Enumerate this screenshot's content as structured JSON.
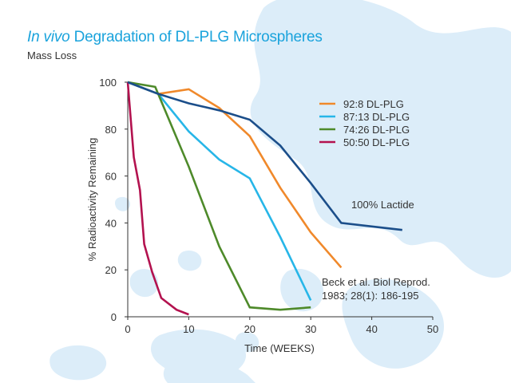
{
  "header": {
    "title_italic": "In vivo",
    "title_rest": " Degradation of  DL-PLG Microspheres",
    "subtitle": "Mass Loss"
  },
  "colors": {
    "title": "#1aa3dc",
    "background_blob": "#dcedf9",
    "axis": "#333333"
  },
  "chart_data": {
    "type": "line",
    "title": "In vivo Degradation of DL-PLG Microspheres",
    "subtitle": "Mass Loss",
    "xlabel": "Time (WEEKS)",
    "ylabel": "% Radioactivity Remaining",
    "xlim": [
      0,
      50
    ],
    "ylim": [
      0,
      100
    ],
    "xticks": [
      0,
      10,
      20,
      30,
      40,
      50
    ],
    "yticks": [
      0,
      20,
      40,
      60,
      80,
      100
    ],
    "grid": false,
    "legend_position": "top-right",
    "series": [
      {
        "name": "92:8 DL-PLG",
        "color": "#f0892b",
        "x": [
          0,
          5,
          10,
          15,
          20,
          25,
          30,
          35
        ],
        "y": [
          100,
          95,
          97,
          89,
          77,
          55,
          36,
          21
        ]
      },
      {
        "name": "87:13 DL-PLG",
        "color": "#27b6e8",
        "x": [
          0,
          5,
          10,
          15,
          20,
          25,
          30
        ],
        "y": [
          100,
          95,
          79,
          67,
          59,
          34,
          7
        ]
      },
      {
        "name": "74:26 DL-PLG",
        "color": "#4e8a2a",
        "x": [
          0,
          4.5,
          10,
          15,
          20,
          25,
          30
        ],
        "y": [
          100,
          98,
          64,
          30,
          4,
          3,
          4
        ]
      },
      {
        "name": "50:50 DL-PLG",
        "color": "#b3124f",
        "x": [
          0,
          1,
          2,
          2.7,
          4,
          5.5,
          8,
          10
        ],
        "y": [
          100,
          68,
          54,
          31,
          19,
          8,
          3,
          1
        ]
      },
      {
        "name": "100% Lactide",
        "color": "#1b4e8a",
        "x": [
          0,
          5,
          10,
          15,
          20,
          25,
          30,
          35,
          45
        ],
        "y": [
          100,
          95,
          91,
          88,
          84,
          73,
          57,
          40,
          37
        ]
      }
    ],
    "annotations": [
      {
        "text": "100% Lactide",
        "target_series": "100% Lactide"
      },
      {
        "text": "Beck  et al. Biol Reprod."
      },
      {
        "text": "1983; 28(1): 186-195"
      }
    ]
  }
}
